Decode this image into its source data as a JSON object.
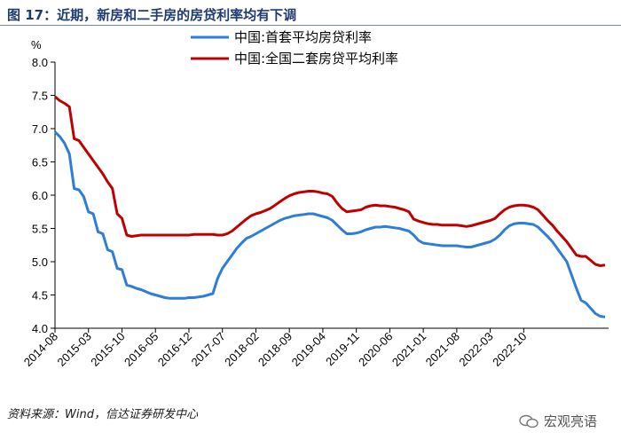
{
  "header": {
    "title": "图 17：近期，新房和二手房的房贷利率均有下调"
  },
  "footer": {
    "source": "资料来源：Wind，信达证券研发中心",
    "watermark": "宏观亮语"
  },
  "chart_data": {
    "type": "line",
    "ylabel": "%",
    "ylim": [
      4.0,
      8.0
    ],
    "yticks": [
      "8.0",
      "7.5",
      "7.0",
      "6.5",
      "6.0",
      "5.5",
      "5.0",
      "4.5",
      "4.0"
    ],
    "xticks": [
      "2014-08",
      "2015-03",
      "2015-10",
      "2016-05",
      "2016-12",
      "2017-07",
      "2018-02",
      "2018-09",
      "2019-04",
      "2019-11",
      "2020-06",
      "2021-01",
      "2021-08",
      "2022-03",
      "2022-10"
    ],
    "grid": false,
    "legend": "top",
    "series": [
      {
        "name": "中国:首套平均房贷利率",
        "color": "#2e7dd7",
        "values": [
          6.95,
          6.88,
          6.78,
          6.62,
          6.1,
          6.08,
          5.98,
          5.75,
          5.72,
          5.45,
          5.42,
          5.18,
          5.15,
          4.9,
          4.88,
          4.65,
          4.63,
          4.6,
          4.58,
          4.55,
          4.52,
          4.5,
          4.48,
          4.46,
          4.45,
          4.45,
          4.45,
          4.45,
          4.46,
          4.46,
          4.47,
          4.48,
          4.5,
          4.52,
          4.75,
          4.9,
          5.0,
          5.1,
          5.2,
          5.28,
          5.35,
          5.38,
          5.42,
          5.46,
          5.5,
          5.54,
          5.58,
          5.62,
          5.65,
          5.67,
          5.69,
          5.7,
          5.71,
          5.72,
          5.72,
          5.7,
          5.68,
          5.66,
          5.62,
          5.55,
          5.48,
          5.42,
          5.42,
          5.43,
          5.45,
          5.48,
          5.5,
          5.52,
          5.52,
          5.53,
          5.52,
          5.51,
          5.5,
          5.48,
          5.46,
          5.4,
          5.32,
          5.28,
          5.27,
          5.26,
          5.25,
          5.24,
          5.24,
          5.24,
          5.24,
          5.23,
          5.22,
          5.22,
          5.24,
          5.26,
          5.28,
          5.3,
          5.34,
          5.4,
          5.48,
          5.54,
          5.57,
          5.58,
          5.58,
          5.57,
          5.56,
          5.52,
          5.45,
          5.38,
          5.3,
          5.2,
          5.1,
          5.0,
          4.8,
          4.6,
          4.42,
          4.38,
          4.3,
          4.22,
          4.18,
          4.17
        ]
      },
      {
        "name": "中国:全国二套房贷平均利率",
        "color": "#c00000",
        "values": [
          7.48,
          7.42,
          7.38,
          7.33,
          6.85,
          6.82,
          6.72,
          6.62,
          6.52,
          6.42,
          6.32,
          6.2,
          6.1,
          5.72,
          5.65,
          5.4,
          5.38,
          5.39,
          5.4,
          5.4,
          5.4,
          5.4,
          5.4,
          5.4,
          5.4,
          5.4,
          5.4,
          5.4,
          5.4,
          5.41,
          5.41,
          5.41,
          5.41,
          5.41,
          5.4,
          5.4,
          5.42,
          5.46,
          5.52,
          5.58,
          5.64,
          5.69,
          5.72,
          5.74,
          5.77,
          5.8,
          5.85,
          5.9,
          5.95,
          5.99,
          6.02,
          6.04,
          6.05,
          6.06,
          6.06,
          6.05,
          6.03,
          6.02,
          5.98,
          5.88,
          5.8,
          5.75,
          5.76,
          5.77,
          5.78,
          5.82,
          5.84,
          5.85,
          5.84,
          5.84,
          5.83,
          5.82,
          5.8,
          5.78,
          5.75,
          5.64,
          5.61,
          5.59,
          5.57,
          5.56,
          5.56,
          5.55,
          5.55,
          5.55,
          5.55,
          5.54,
          5.53,
          5.54,
          5.56,
          5.58,
          5.6,
          5.62,
          5.65,
          5.72,
          5.78,
          5.82,
          5.84,
          5.85,
          5.85,
          5.84,
          5.82,
          5.78,
          5.7,
          5.62,
          5.55,
          5.46,
          5.38,
          5.3,
          5.2,
          5.1,
          5.08,
          5.08,
          5.02,
          4.96,
          4.94,
          4.95
        ]
      }
    ]
  }
}
